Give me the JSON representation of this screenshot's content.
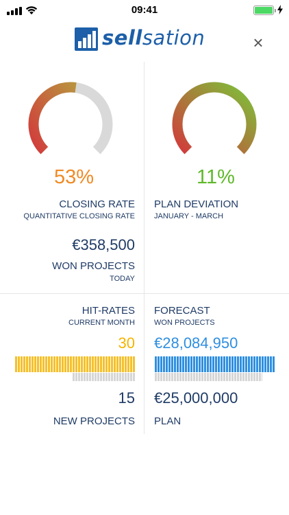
{
  "status": {
    "time": "09:41"
  },
  "logo": {
    "part1": "sell",
    "part2": "sation"
  },
  "gauges": {
    "closing": {
      "value": 0.53,
      "color_start": "#d23b3b",
      "color_end": "#b9923f",
      "track": "#d9d9d9",
      "pct_color": "#f08a24"
    },
    "deviation": {
      "value": 1.0,
      "color_start": "#d23b3b",
      "color_end": "#7cc23a",
      "track": "#d9d9d9",
      "pct_color": "#5fb82a"
    }
  },
  "closing_rate": {
    "percent": "53%",
    "title": "CLOSING RATE",
    "subtitle": "QUANTITATIVE CLOSING RATE",
    "amount": "€358,500",
    "amount_label": "WON PROJECTS",
    "amount_sub": "TODAY"
  },
  "plan_deviation": {
    "percent": "11%",
    "title": "PLAN DEVIATION",
    "subtitle": "JANUARY - MARCH"
  },
  "hit_rates": {
    "title": "HIT-RATES",
    "subtitle": "CURRENT MONTH",
    "value": "30",
    "value_color": "#f5b300",
    "bar_color": "#f5c02a",
    "bar_fill": 1.0,
    "ref_fill": 0.5,
    "plan_value": "15",
    "plan_label": "NEW PROJECTS"
  },
  "forecast": {
    "title": "FORECAST",
    "subtitle": "WON PROJECTS",
    "value": "€28,084,950",
    "value_color": "#2f8fe0",
    "bar_color": "#2f8fe0",
    "bar_fill": 1.0,
    "ref_fill": 0.89,
    "plan_value": "€25,000,000",
    "plan_label": "PLAN"
  }
}
